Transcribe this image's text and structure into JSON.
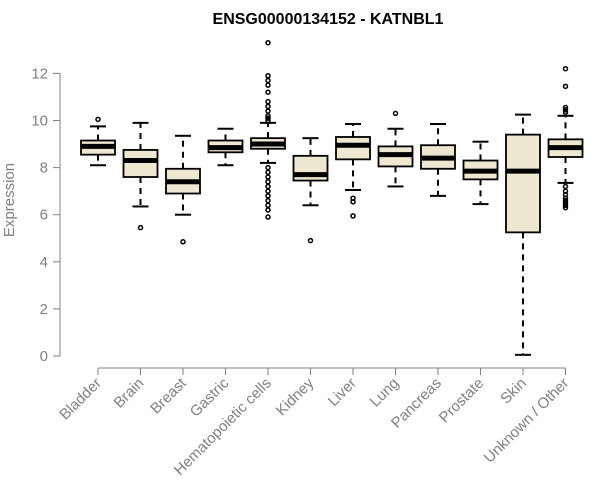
{
  "chart_data": {
    "type": "boxplot",
    "title": "ENSG00000134152 - KATNBL1",
    "xlabel": "",
    "ylabel": "Expression",
    "ylim": [
      0,
      13.5
    ],
    "yticks": [
      0,
      2,
      4,
      6,
      8,
      10,
      12
    ],
    "grid": false,
    "colors": {
      "box_fill": "#efe8d0",
      "stroke": "#000000",
      "axis": "#808080"
    },
    "categories": [
      "Bladder",
      "Brain",
      "Breast",
      "Gastric",
      "Hematopoietic cells",
      "Kidney",
      "Liver",
      "Lung",
      "Pancreas",
      "Prostate",
      "Skin",
      "Unknown / Other"
    ],
    "boxes": [
      {
        "category": "Bladder",
        "whisker_low": 8.1,
        "q1": 8.55,
        "median": 8.9,
        "q3": 9.15,
        "whisker_high": 9.75,
        "outliers": [
          10.05
        ]
      },
      {
        "category": "Brain",
        "whisker_low": 6.35,
        "q1": 7.6,
        "median": 8.3,
        "q3": 8.75,
        "whisker_high": 9.9,
        "outliers": [
          5.45
        ]
      },
      {
        "category": "Breast",
        "whisker_low": 6.0,
        "q1": 6.9,
        "median": 7.4,
        "q3": 7.95,
        "whisker_high": 9.35,
        "outliers": [
          4.85
        ]
      },
      {
        "category": "Gastric",
        "whisker_low": 8.1,
        "q1": 8.65,
        "median": 8.85,
        "q3": 9.15,
        "whisker_high": 9.65,
        "outliers": []
      },
      {
        "category": "Hematopoietic cells",
        "whisker_low": 8.2,
        "q1": 8.8,
        "median": 9.0,
        "q3": 9.25,
        "whisker_high": 9.9,
        "outliers": [
          13.3,
          11.9,
          11.7,
          11.5,
          11.2,
          10.8,
          10.6,
          10.4,
          10.2,
          10.1,
          10.0,
          8.0,
          7.8,
          7.6,
          7.4,
          7.2,
          7.0,
          6.8,
          6.6,
          6.4,
          6.2,
          5.9
        ]
      },
      {
        "category": "Kidney",
        "whisker_low": 6.4,
        "q1": 7.45,
        "median": 7.7,
        "q3": 8.5,
        "whisker_high": 9.25,
        "outliers": [
          4.9
        ]
      },
      {
        "category": "Liver",
        "whisker_low": 7.05,
        "q1": 8.35,
        "median": 8.95,
        "q3": 9.3,
        "whisker_high": 9.85,
        "outliers": [
          6.7,
          6.55,
          5.95
        ]
      },
      {
        "category": "Lung",
        "whisker_low": 7.2,
        "q1": 8.05,
        "median": 8.55,
        "q3": 8.9,
        "whisker_high": 9.65,
        "outliers": [
          10.3
        ]
      },
      {
        "category": "Pancreas",
        "whisker_low": 6.8,
        "q1": 7.95,
        "median": 8.4,
        "q3": 8.95,
        "whisker_high": 9.85,
        "outliers": []
      },
      {
        "category": "Prostate",
        "whisker_low": 6.45,
        "q1": 7.5,
        "median": 7.85,
        "q3": 8.3,
        "whisker_high": 9.1,
        "outliers": []
      },
      {
        "category": "Skin",
        "whisker_low": 0.05,
        "q1": 5.25,
        "median": 7.85,
        "q3": 9.4,
        "whisker_high": 10.25,
        "outliers": []
      },
      {
        "category": "Unknown / Other",
        "whisker_low": 7.35,
        "q1": 8.45,
        "median": 8.85,
        "q3": 9.2,
        "whisker_high": 10.2,
        "outliers": [
          12.2,
          11.45,
          10.55,
          10.45,
          10.35,
          7.2,
          7.0,
          6.85,
          6.7,
          6.6,
          6.5,
          6.4,
          6.3
        ]
      }
    ]
  }
}
